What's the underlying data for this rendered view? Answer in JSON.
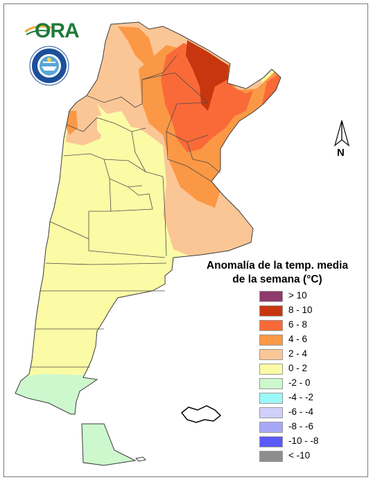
{
  "logo": {
    "text": "ORA",
    "brand_color": "#1f7a38",
    "accent_color": "#e8a93a"
  },
  "seal": {
    "text": "SERVICIO METEOROLOGICO NACIONAL · ARGENTINA",
    "icon": "smn-seal-icon"
  },
  "north": {
    "label": "N"
  },
  "legend": {
    "title_line1": "Anomalía de la temp. media",
    "title_line2": "de la semana (°C)",
    "items": [
      {
        "label": "> 10",
        "color": "#8e3a6b"
      },
      {
        "label": "8 - 10",
        "color": "#c8360f"
      },
      {
        "label": "6 - 8",
        "color": "#f96a38"
      },
      {
        "label": "4 - 6",
        "color": "#fb9845"
      },
      {
        "label": "2 - 4",
        "color": "#fbc696"
      },
      {
        "label": "0 - 2",
        "color": "#fbfba6"
      },
      {
        "label": "-2 - 0",
        "color": "#cdf8cd"
      },
      {
        "label": "-4 - -2",
        "color": "#9bf8f8"
      },
      {
        "label": "-6 - -4",
        "color": "#cfcffa"
      },
      {
        "label": "-8 - -6",
        "color": "#a8a8f8"
      },
      {
        "label": "-10 - -8",
        "color": "#5a5af8"
      },
      {
        "label": "< -10",
        "color": "#8e8e8e"
      }
    ]
  }
}
